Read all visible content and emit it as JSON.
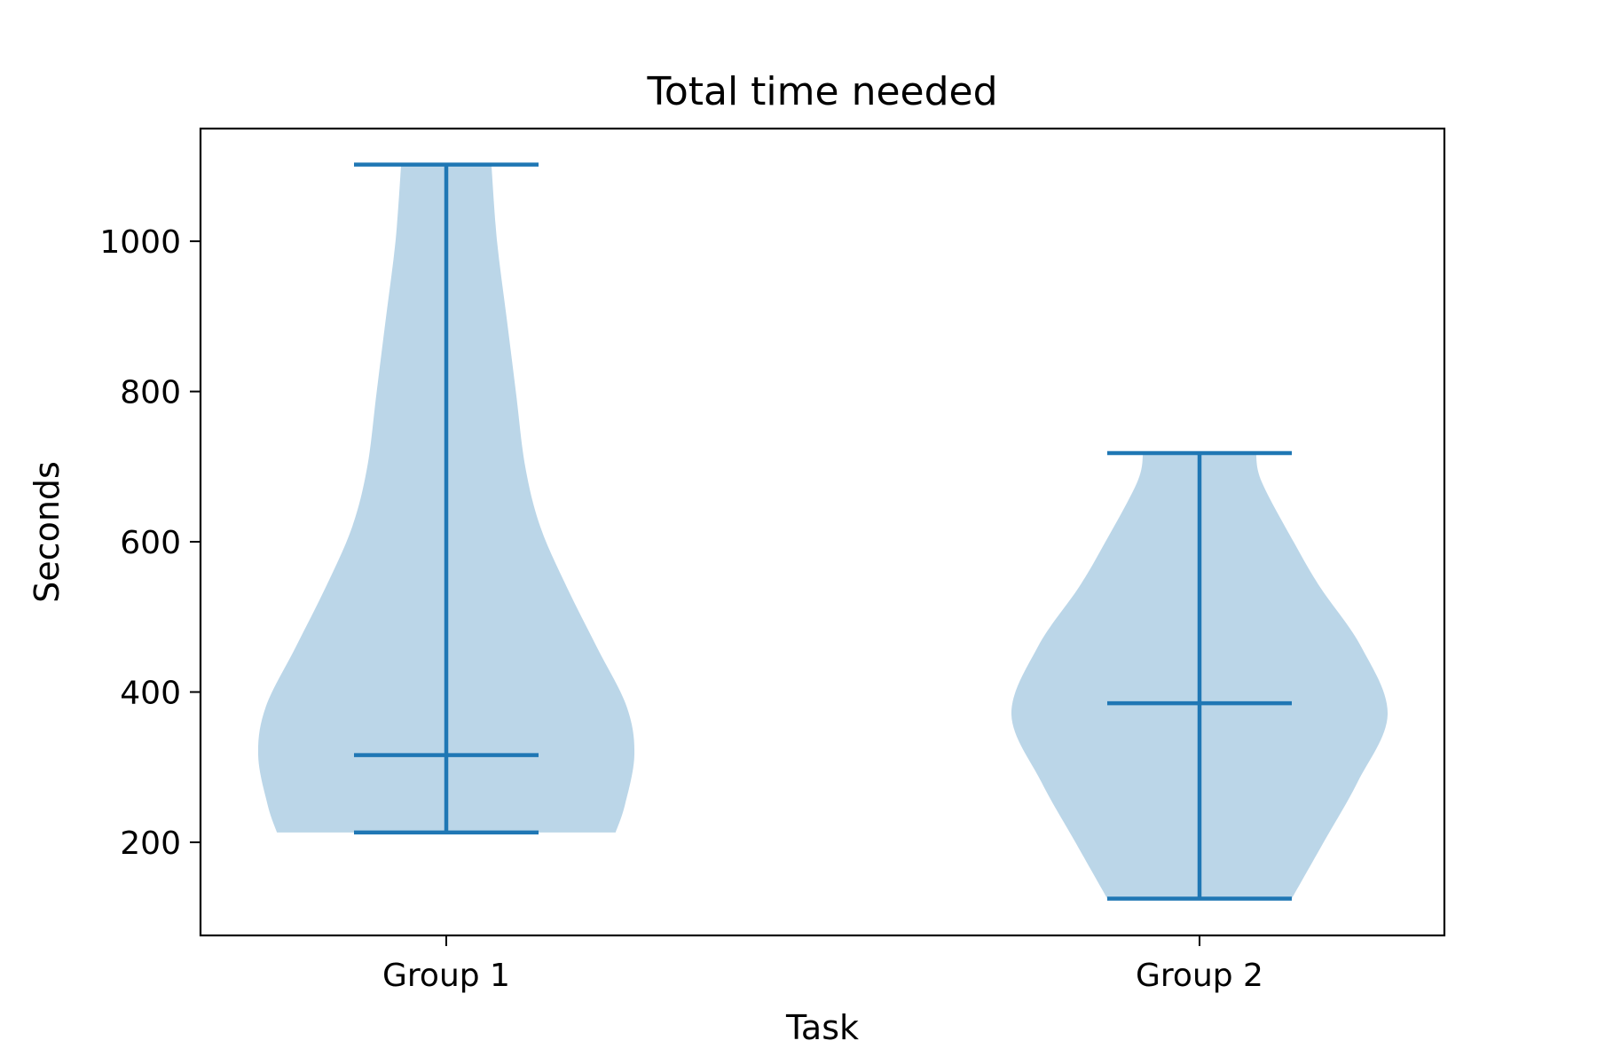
{
  "chart_data": {
    "type": "violin",
    "title": "Total time needed",
    "xlabel": "Task",
    "ylabel": "Seconds",
    "categories": [
      "Group 1",
      "Group 2"
    ],
    "ylim": [
      76,
      1150
    ],
    "yticks": [
      "200",
      "400",
      "600",
      "800",
      "1000"
    ],
    "grid": false,
    "color_body": "#1f77b4",
    "body_opacity": 0.3,
    "color_lines": "#1f77b4",
    "series": [
      {
        "category": "Group 1",
        "min": 213,
        "max": 1102,
        "median": 316,
        "density_half_width_fraction": [
          [
            213,
            0.9
          ],
          [
            250,
            0.95
          ],
          [
            316,
            1.0
          ],
          [
            380,
            0.96
          ],
          [
            460,
            0.8
          ],
          [
            540,
            0.64
          ],
          [
            620,
            0.5
          ],
          [
            700,
            0.42
          ],
          [
            800,
            0.37
          ],
          [
            900,
            0.32
          ],
          [
            1000,
            0.27
          ],
          [
            1102,
            0.24
          ]
        ]
      },
      {
        "category": "Group 2",
        "min": 125,
        "max": 718,
        "median": 385,
        "density_half_width_fraction": [
          [
            125,
            0.49
          ],
          [
            200,
            0.66
          ],
          [
            280,
            0.84
          ],
          [
            370,
            1.0
          ],
          [
            460,
            0.86
          ],
          [
            540,
            0.64
          ],
          [
            600,
            0.5
          ],
          [
            680,
            0.33
          ],
          [
            718,
            0.3
          ]
        ]
      }
    ]
  }
}
